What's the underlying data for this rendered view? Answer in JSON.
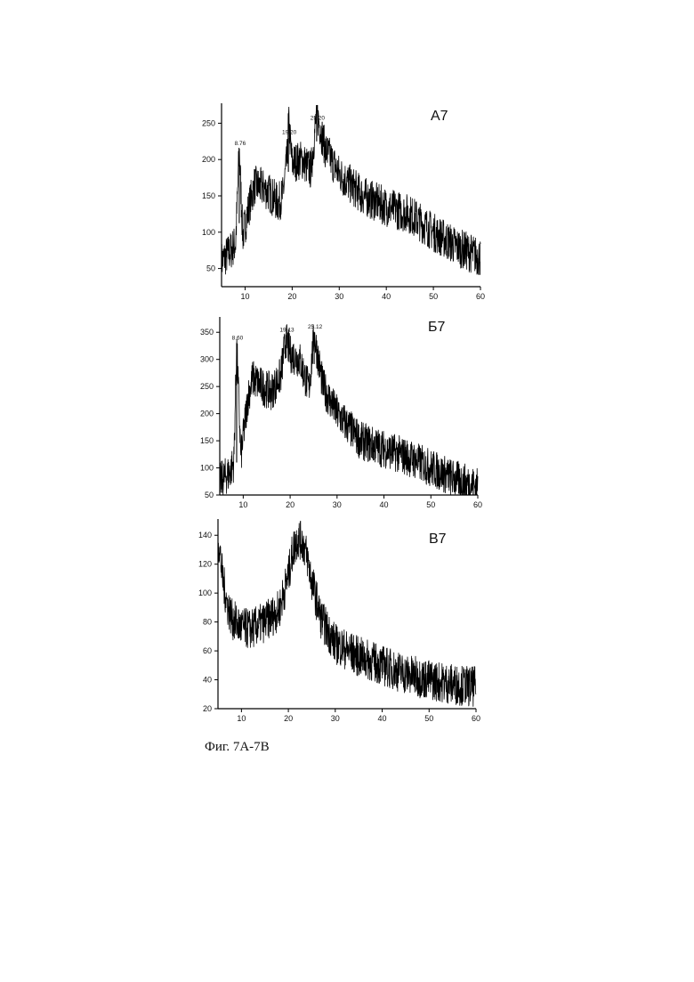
{
  "caption": "Фиг. 7А-7В",
  "chart_data": [
    {
      "type": "line",
      "panel_label": "А7",
      "xlim": [
        5,
        60
      ],
      "ylim": [
        25,
        275
      ],
      "x_ticks": [
        10,
        20,
        30,
        40,
        50,
        60
      ],
      "y_ticks": [
        50,
        100,
        150,
        200,
        250
      ],
      "peak_labels": [
        {
          "x": 8.76,
          "y": 215,
          "text": "8.76"
        },
        {
          "x": 19.2,
          "y": 230,
          "text": "19.20"
        },
        {
          "x": 25.2,
          "y": 250,
          "text": "25.20"
        }
      ],
      "series": [
        {
          "x": [
            5,
            7,
            8,
            8.76,
            9.5,
            11,
            12,
            14,
            15,
            17,
            18,
            19,
            19.2,
            20,
            22,
            24,
            25.2,
            27,
            30,
            35,
            40,
            45,
            50,
            55,
            60
          ],
          "y": [
            60,
            75,
            85,
            215,
            95,
            140,
            165,
            160,
            155,
            140,
            150,
            205,
            255,
            195,
            200,
            185,
            265,
            215,
            180,
            150,
            135,
            125,
            100,
            80,
            65
          ]
        }
      ]
    },
    {
      "type": "line",
      "panel_label": "Б7",
      "xlim": [
        5,
        60
      ],
      "ylim": [
        50,
        375
      ],
      "x_ticks": [
        10,
        20,
        30,
        40,
        50,
        60
      ],
      "y_ticks": [
        50,
        100,
        150,
        200,
        250,
        300,
        350
      ],
      "peak_labels": [
        {
          "x": 8.6,
          "y": 330,
          "text": "8.60"
        },
        {
          "x": 19.13,
          "y": 345,
          "text": "19.13"
        },
        {
          "x": 25.12,
          "y": 350,
          "text": "25.12"
        }
      ],
      "series": [
        {
          "x": [
            5,
            7,
            8,
            8.6,
            9.5,
            11,
            12,
            14,
            16,
            18,
            19.13,
            20,
            22,
            24,
            25.12,
            27,
            30,
            35,
            40,
            45,
            50,
            55,
            60
          ],
          "y": [
            75,
            90,
            110,
            330,
            120,
            230,
            265,
            250,
            240,
            270,
            340,
            310,
            300,
            245,
            345,
            250,
            200,
            150,
            135,
            120,
            100,
            80,
            65
          ]
        }
      ]
    },
    {
      "type": "line",
      "panel_label": "В7",
      "xlim": [
        5,
        60
      ],
      "ylim": [
        20,
        150
      ],
      "x_ticks": [
        10,
        20,
        30,
        40,
        50,
        60
      ],
      "y_ticks": [
        20,
        40,
        60,
        80,
        100,
        120,
        140
      ],
      "peak_labels": [],
      "series": [
        {
          "x": [
            5,
            6,
            7,
            8,
            10,
            12,
            15,
            18,
            20,
            21,
            22,
            23,
            24,
            25,
            27,
            30,
            35,
            40,
            45,
            50,
            55,
            60
          ],
          "y": [
            140,
            110,
            92,
            82,
            76,
            75,
            80,
            88,
            112,
            130,
            138,
            136,
            125,
            108,
            82,
            65,
            56,
            50,
            44,
            40,
            37,
            35
          ]
        }
      ]
    }
  ]
}
